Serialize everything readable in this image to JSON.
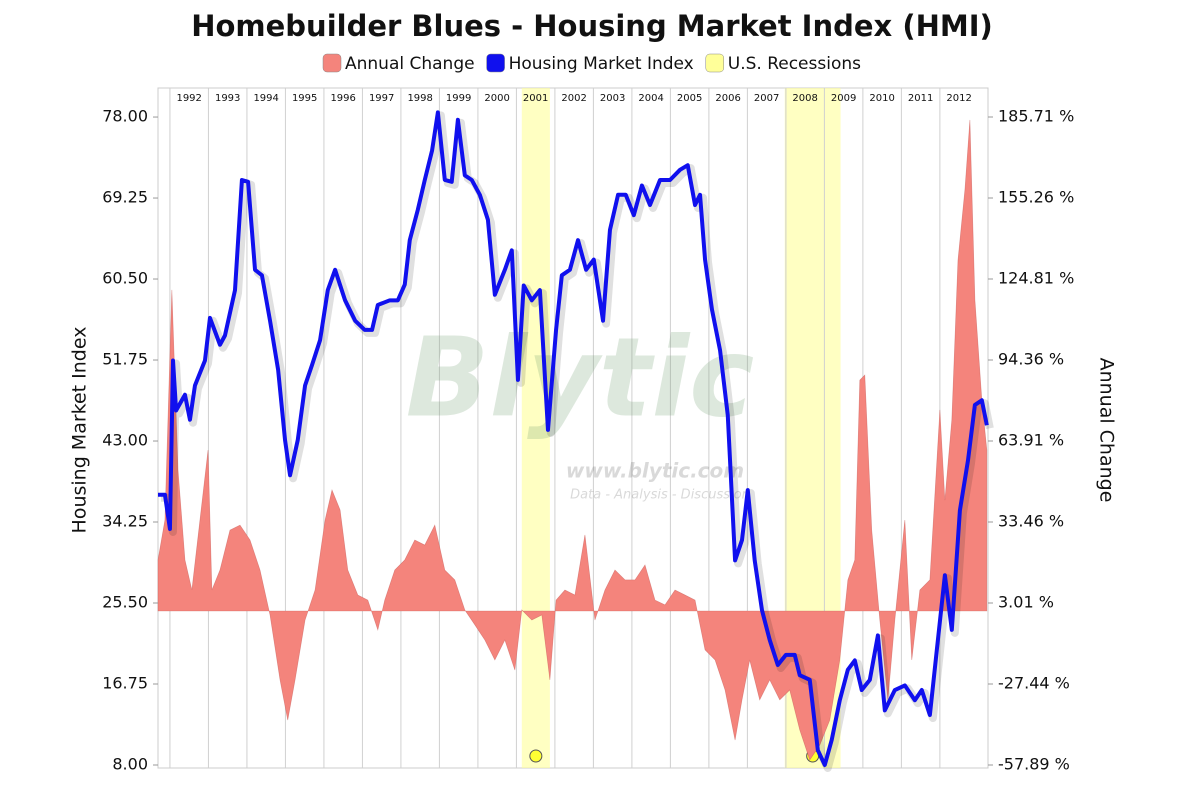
{
  "chart_data": {
    "type": "dual-axis-line-area",
    "title": "Homebuilder Blues - Housing Market Index (HMI)",
    "ylabel": "Housing Market Index",
    "y2label": "Annual Change",
    "watermark": [
      "Blytic",
      "www.blytic.com",
      "Data - Analysis - Discussion"
    ],
    "xlim": [
      1991.69,
      2013.25
    ],
    "xticks": [
      1992,
      1993,
      1994,
      1995,
      1996,
      1997,
      1998,
      1999,
      2000,
      2001,
      2002,
      2003,
      2004,
      2005,
      2006,
      2007,
      2008,
      2009,
      2010,
      2011,
      2012
    ],
    "ylim": [
      8,
      79.3
    ],
    "yticks": [
      {
        "value": 8,
        "label": "8.00"
      },
      16.75,
      {
        "value": 25.5,
        "label": "25.50"
      },
      34.25,
      {
        "value": 43,
        "label": "43.00"
      },
      51.75,
      {
        "value": 60.5,
        "label": "60.50"
      },
      69.25,
      {
        "value": 78,
        "label": "78.00"
      }
    ],
    "y2lim": [
      -57.89,
      190.22
    ],
    "y2ticks": [
      {
        "value": -57.89,
        "label": "-57.89 %"
      },
      {
        "value": -27.44,
        "label": "-27.44 %"
      },
      {
        "value": 3.01,
        "label": "3.01 %"
      },
      {
        "value": 33.46,
        "label": "33.46 %"
      },
      {
        "value": 63.91,
        "label": "63.91 %"
      },
      {
        "value": 94.36,
        "label": "94.36 %"
      },
      {
        "value": 124.81,
        "label": "124.81 %"
      },
      {
        "value": 155.26,
        "label": "155.26 %"
      },
      {
        "value": 185.71,
        "label": "185.71 %"
      }
    ],
    "grid": true,
    "series": [
      {
        "name": "Annual Change",
        "style": "area",
        "axis": "y2",
        "color": "#f4847c",
        "x": [
          1991.69,
          1991.87,
          1992.05,
          1992.21,
          1992.39,
          1992.57,
          1992.78,
          1992.99,
          1993.09,
          1993.3,
          1993.56,
          1993.82,
          1994.08,
          1994.34,
          1994.6,
          1994.86,
          1995.06,
          1995.25,
          1995.51,
          1995.77,
          1996.03,
          1996.21,
          1996.42,
          1996.62,
          1996.88,
          1997.14,
          1997.4,
          1997.58,
          1997.84,
          1998.1,
          1998.36,
          1998.62,
          1998.88,
          1999.14,
          1999.4,
          1999.66,
          1999.92,
          2000.18,
          2000.44,
          2000.7,
          2000.96,
          2001.14,
          2001.4,
          2001.66,
          2001.87,
          2002.03,
          2002.26,
          2002.52,
          2002.78,
          2003.04,
          2003.3,
          2003.56,
          2003.82,
          2004.08,
          2004.34,
          2004.6,
          2004.86,
          2005.12,
          2005.38,
          2005.64,
          2005.9,
          2006.16,
          2006.42,
          2006.68,
          2006.86,
          2007.06,
          2007.32,
          2007.58,
          2007.84,
          2008.1,
          2008.36,
          2008.62,
          2008.88,
          2009.14,
          2009.4,
          2009.61,
          2009.79,
          2009.92,
          2010.05,
          2010.23,
          2010.44,
          2010.65,
          2010.83,
          2011.09,
          2011.27,
          2011.48,
          2011.74,
          2012.0,
          2012.13,
          2012.31,
          2012.47,
          2012.65,
          2012.78,
          2012.91,
          2013.09,
          2013.22
        ],
        "values": [
          19.2,
          34.2,
          120.7,
          53,
          19.2,
          7.9,
          34.2,
          60.5,
          7.9,
          15.4,
          30.4,
          32.3,
          26.7,
          15.4,
          -1.5,
          -25.9,
          -41,
          -25.9,
          -3.4,
          7.9,
          34.2,
          45.5,
          38,
          15.4,
          6,
          4.1,
          -7.1,
          4.1,
          15.4,
          19.2,
          26.7,
          24.8,
          32.3,
          15.4,
          11.7,
          0.4,
          -5.2,
          -10.9,
          -18.4,
          -10.9,
          -22.2,
          0.4,
          -3.4,
          -1.5,
          -25.9,
          4.1,
          7.9,
          6,
          28.6,
          -3.4,
          7.9,
          15.4,
          11.7,
          11.7,
          17.3,
          4.1,
          2.3,
          7.9,
          6,
          4.1,
          -14.6,
          -18.4,
          -29.7,
          -48.5,
          -33.4,
          -18.4,
          -33.4,
          -25.9,
          -33.4,
          -29.7,
          -44.7,
          -56,
          -50.4,
          -41,
          -18.4,
          11.7,
          19.2,
          86.8,
          88.7,
          30.4,
          -3.4,
          -33.4,
          -3.4,
          34.2,
          -18.4,
          7.9,
          11.7,
          75.6,
          41.7,
          71.8,
          131.9,
          158.3,
          184.6,
          117,
          79.3,
          60.5
        ]
      },
      {
        "name": "Housing Market Index",
        "style": "line",
        "axis": "y",
        "color": "#1010ee",
        "x": [
          1991.69,
          1991.87,
          1992.0,
          1992.08,
          1992.16,
          1992.39,
          1992.52,
          1992.65,
          1992.91,
          1993.04,
          1993.3,
          1993.43,
          1993.69,
          1993.87,
          1994.03,
          1994.21,
          1994.39,
          1994.6,
          1994.81,
          1994.99,
          1995.12,
          1995.32,
          1995.51,
          1995.69,
          1995.9,
          1996.1,
          1996.29,
          1996.55,
          1996.81,
          1997.06,
          1997.25,
          1997.4,
          1997.71,
          1997.92,
          1998.1,
          1998.23,
          1998.44,
          1998.62,
          1998.81,
          1998.96,
          1999.14,
          1999.32,
          1999.48,
          1999.66,
          1999.84,
          2000.05,
          2000.26,
          2000.44,
          2000.7,
          2000.88,
          2001.04,
          2001.19,
          2001.4,
          2001.61,
          2001.82,
          2002.03,
          2002.18,
          2002.39,
          2002.6,
          2002.81,
          2003.01,
          2003.25,
          2003.43,
          2003.64,
          2003.84,
          2004.05,
          2004.26,
          2004.47,
          2004.73,
          2004.99,
          2005.25,
          2005.45,
          2005.64,
          2005.77,
          2005.9,
          2006.08,
          2006.29,
          2006.49,
          2006.68,
          2006.86,
          2007.01,
          2007.19,
          2007.38,
          2007.58,
          2007.79,
          2008.0,
          2008.23,
          2008.36,
          2008.62,
          2008.83,
          2009.01,
          2009.19,
          2009.4,
          2009.61,
          2009.79,
          2009.97,
          2010.18,
          2010.39,
          2010.57,
          2010.83,
          2011.09,
          2011.35,
          2011.53,
          2011.74,
          2011.92,
          2012.13,
          2012.31,
          2012.52,
          2012.73,
          2012.91,
          2013.09,
          2013.22
        ],
        "values": [
          37.2,
          37.2,
          33.5,
          51.7,
          46.3,
          48,
          45.3,
          49,
          51.7,
          56.3,
          53.4,
          54.4,
          59.3,
          71.2,
          71,
          61.5,
          60.9,
          56,
          50.7,
          43.1,
          39.3,
          43.1,
          49,
          51.2,
          53.9,
          59.3,
          61.5,
          58.2,
          56,
          55,
          55,
          57.7,
          58.2,
          58.2,
          59.9,
          64.7,
          68,
          71.2,
          74.4,
          78.5,
          71.2,
          71,
          77.7,
          71.7,
          71.2,
          69.6,
          66.9,
          58.8,
          61.5,
          63.6,
          49.6,
          59.8,
          58.2,
          59.3,
          44.2,
          55,
          60.9,
          61.5,
          64.7,
          61.5,
          62.6,
          56,
          65.8,
          69.6,
          69.6,
          67.4,
          70.6,
          68.5,
          71.2,
          71.2,
          72.3,
          72.8,
          68.5,
          69.6,
          62.6,
          57.2,
          52.8,
          45.8,
          30.1,
          32.3,
          37.7,
          30.1,
          24.7,
          21.5,
          18.8,
          19.9,
          19.9,
          17.7,
          17.2,
          9.6,
          8,
          10.7,
          15,
          18.3,
          19.3,
          16.1,
          17.2,
          22,
          13.9,
          16.1,
          16.6,
          15,
          16.1,
          13.4,
          20.4,
          28.5,
          22.6,
          35.5,
          40.9,
          46.9,
          47.4,
          44.7
        ]
      }
    ],
    "recessions": {
      "name": "U.S. Recessions",
      "color": "#ffff99",
      "spans": [
        [
          2001.14,
          2001.87
        ],
        [
          2007.97,
          2009.42
        ]
      ]
    }
  }
}
